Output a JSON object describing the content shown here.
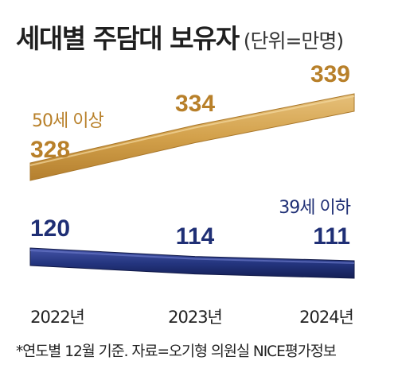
{
  "header": {
    "title": "세대별 주담대 보유자",
    "unit": "(단위=만명)"
  },
  "footnote": "*연도별 12월 기준. 자료=오기형 의원실 NICE평가정보",
  "colors": {
    "gold": "#d2a04a",
    "gold_dark": "#b8802a",
    "navy": "#1f2f75"
  },
  "chart_data": {
    "type": "line",
    "title": "세대별 주담대 보유자",
    "unit": "(단위=만명)",
    "categories": [
      "2022년",
      "2023년",
      "2024년"
    ],
    "series": [
      {
        "name": "50세 이상",
        "values": [
          328,
          334,
          339
        ],
        "value_labels": [
          "328",
          "334",
          "339"
        ]
      },
      {
        "name": "39세 이하",
        "values": [
          120,
          114,
          111
        ],
        "value_labels": [
          "120",
          "114",
          "111"
        ]
      }
    ],
    "grid": false,
    "legend": "inline"
  }
}
